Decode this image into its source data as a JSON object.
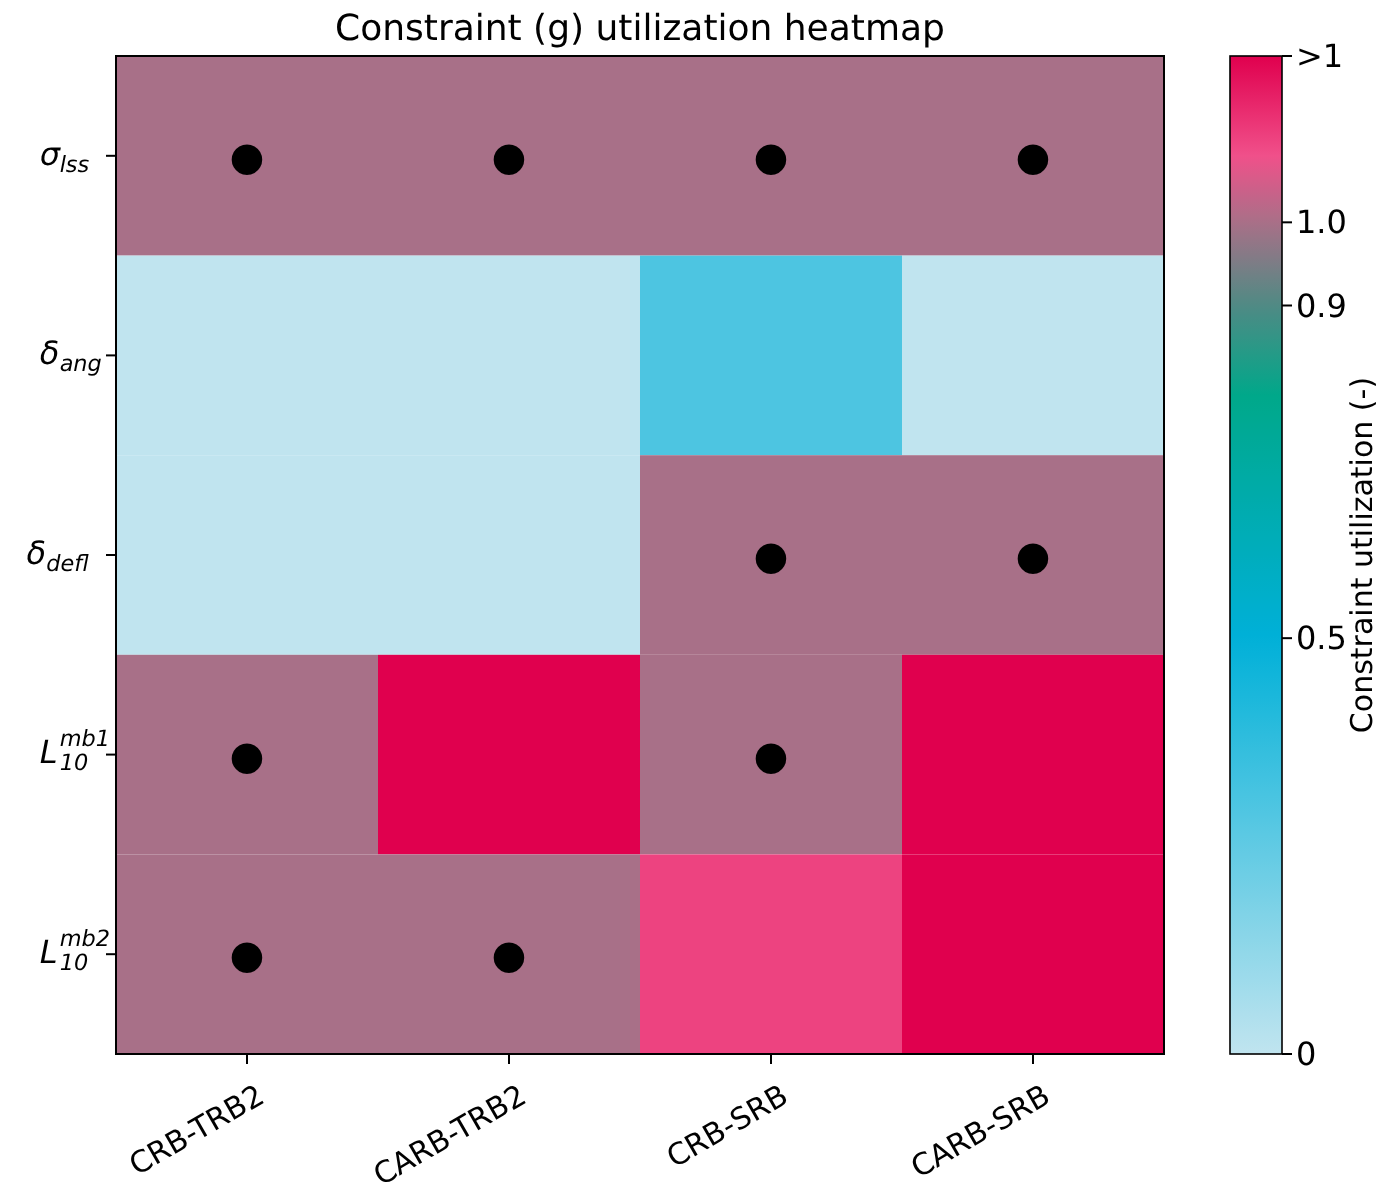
{
  "chart_data": {
    "type": "heatmap",
    "title": "Constraint (g) utilization heatmap",
    "categories": [
      "CRB-TRB2",
      "CARB-TRB2",
      "CRB-SRB",
      "CARB-SRB"
    ],
    "y_categories": [
      "σ$_{lss}$",
      "δ$_{ang}$",
      "δ$_{defl}$",
      "L$_{10}$$^{mb1}$",
      "L$_{10}$$^{mb2}$"
    ],
    "cells": [
      [
        1.0,
        1.0,
        1.0,
        1.0
      ],
      [
        0,
        0,
        0.3,
        0
      ],
      [
        0,
        0,
        1.0,
        1.0
      ],
      [
        1.0,
        1.2,
        1.0,
        1.2
      ],
      [
        1.0,
        1.0,
        1.1,
        1.2
      ]
    ],
    "cell_labels": [
      [
        "●",
        "●",
        "●",
        "●"
      ],
      [
        null,
        null,
        null,
        null
      ],
      [
        null,
        null,
        "●",
        "●"
      ],
      [
        "●",
        null,
        "●",
        null
      ],
      [
        "●",
        "●",
        null,
        null
      ]
    ],
    "clabel": "Constraint utilization (-)",
    "clim": [
      0,
      1.2
    ],
    "cticks": [
      0,
      0.5,
      0.9,
      {
        "value": 1.0,
        "label": "1.0"
      },
      {
        "value": 1.2,
        "label": ">1"
      }
    ]
  }
}
